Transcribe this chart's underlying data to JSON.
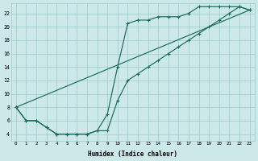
{
  "xlabel": "Humidex (Indice chaleur)",
  "bg_color": "#cce8e8",
  "grid_color": "#99cccc",
  "line_color": "#1a6b5a",
  "xlim": [
    -0.5,
    23.5
  ],
  "ylim": [
    3,
    23.5
  ],
  "xticks": [
    0,
    1,
    2,
    3,
    4,
    5,
    6,
    7,
    8,
    9,
    10,
    11,
    12,
    13,
    14,
    15,
    16,
    17,
    18,
    19,
    20,
    21,
    22,
    23
  ],
  "yticks": [
    4,
    6,
    8,
    10,
    12,
    14,
    16,
    18,
    20,
    22
  ],
  "curve1_x": [
    0,
    1,
    2,
    3,
    4,
    5,
    6,
    7,
    8,
    9,
    10,
    11,
    12,
    13,
    14,
    15,
    16,
    17,
    18,
    19,
    20,
    21,
    22,
    23
  ],
  "curve1_y": [
    8,
    6,
    6,
    5,
    4,
    4,
    4,
    4,
    4.5,
    7,
    14,
    20.5,
    21,
    21,
    21.5,
    21.5,
    21.5,
    22,
    23,
    23,
    23,
    23,
    23,
    22.5
  ],
  "curve2_x": [
    0,
    1,
    2,
    3,
    4,
    5,
    6,
    7,
    8,
    9,
    10,
    11,
    12,
    13,
    14,
    15,
    16,
    17,
    18,
    19,
    20,
    21,
    22,
    23
  ],
  "curve2_y": [
    8,
    6,
    6,
    5,
    4,
    4,
    4,
    4,
    4.5,
    4.5,
    9,
    12,
    13,
    14,
    15,
    16,
    17,
    18,
    19,
    20,
    21,
    22,
    23,
    22.5
  ],
  "line3_x": [
    0,
    23
  ],
  "line3_y": [
    8,
    22.5
  ]
}
